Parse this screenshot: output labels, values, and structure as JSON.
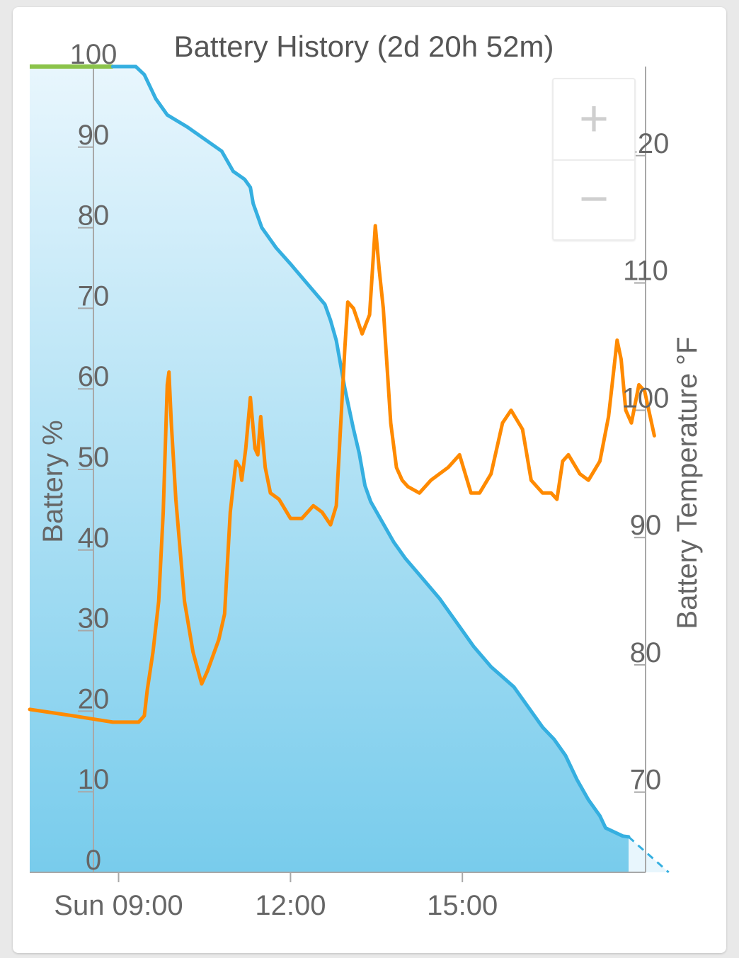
{
  "chart_data": {
    "type": "line",
    "title": "Battery History (2d 20h 52m)",
    "ylabel_left": "Battery %",
    "ylabel_right": "Battery Temperature °F",
    "x_unit": "hours (clock time)",
    "x_ticks": [
      {
        "value": 9,
        "label": "Sun 09:00"
      },
      {
        "value": 12,
        "label": "12:00"
      },
      {
        "value": 15,
        "label": "15:00"
      }
    ],
    "xlim": [
      7.45,
      17.9
    ],
    "y_left": {
      "ticks": [
        0,
        10,
        20,
        30,
        40,
        50,
        60,
        70,
        80,
        90,
        100
      ],
      "lim": [
        0,
        100
      ]
    },
    "y_right": {
      "ticks": [
        70,
        80,
        90,
        100,
        110,
        120
      ],
      "lim": [
        63.7,
        127
      ]
    },
    "grid": false,
    "series": [
      {
        "name": "Battery %",
        "axis": "left",
        "color": "#35afe0",
        "fill": true,
        "points": [
          [
            7.45,
            100
          ],
          [
            8.9,
            100
          ],
          [
            9.3,
            100
          ],
          [
            9.45,
            99
          ],
          [
            9.65,
            96
          ],
          [
            9.85,
            94
          ],
          [
            10.2,
            92.5
          ],
          [
            10.8,
            89.5
          ],
          [
            11.0,
            87
          ],
          [
            11.2,
            86
          ],
          [
            11.3,
            85
          ],
          [
            11.35,
            83
          ],
          [
            11.5,
            80
          ],
          [
            11.75,
            77.5
          ],
          [
            12.0,
            75.5
          ],
          [
            12.3,
            73
          ],
          [
            12.6,
            70.5
          ],
          [
            12.7,
            68.5
          ],
          [
            12.8,
            66
          ],
          [
            12.95,
            60
          ],
          [
            13.1,
            55
          ],
          [
            13.2,
            52
          ],
          [
            13.3,
            48
          ],
          [
            13.4,
            46
          ],
          [
            13.6,
            43.5
          ],
          [
            13.8,
            41
          ],
          [
            14.0,
            39
          ],
          [
            14.3,
            36.5
          ],
          [
            14.6,
            34
          ],
          [
            14.9,
            31
          ],
          [
            15.2,
            28
          ],
          [
            15.5,
            25.5
          ],
          [
            15.9,
            23
          ],
          [
            16.2,
            20
          ],
          [
            16.4,
            18
          ],
          [
            16.6,
            16.5
          ],
          [
            16.8,
            14.5
          ],
          [
            17.0,
            11.5
          ],
          [
            17.2,
            9
          ],
          [
            17.4,
            7
          ],
          [
            17.5,
            5.5
          ],
          [
            17.8,
            4.5
          ],
          [
            17.9,
            4.4
          ]
        ],
        "projection": [
          [
            17.9,
            4.4
          ],
          [
            18.6,
            0
          ]
        ]
      },
      {
        "name": "Battery Temperature °F",
        "axis": "right",
        "color": "#ff8a00",
        "fill": false,
        "points": [
          [
            7.45,
            76.5
          ],
          [
            8.2,
            76
          ],
          [
            8.9,
            75.5
          ],
          [
            9.35,
            75.5
          ],
          [
            9.45,
            76
          ],
          [
            9.5,
            78
          ],
          [
            9.6,
            81
          ],
          [
            9.7,
            85
          ],
          [
            9.78,
            92
          ],
          [
            9.85,
            102
          ],
          [
            9.88,
            103
          ],
          [
            9.92,
            99
          ],
          [
            10.0,
            93
          ],
          [
            10.15,
            85
          ],
          [
            10.3,
            81
          ],
          [
            10.45,
            78.5
          ],
          [
            10.55,
            79.5
          ],
          [
            10.75,
            82
          ],
          [
            10.85,
            84
          ],
          [
            10.95,
            92
          ],
          [
            11.05,
            96
          ],
          [
            11.12,
            95.5
          ],
          [
            11.15,
            94.5
          ],
          [
            11.22,
            97
          ],
          [
            11.3,
            101
          ],
          [
            11.38,
            97
          ],
          [
            11.43,
            96.5
          ],
          [
            11.48,
            99.5
          ],
          [
            11.56,
            95.5
          ],
          [
            11.65,
            93.5
          ],
          [
            11.8,
            93
          ],
          [
            12.0,
            91.5
          ],
          [
            12.2,
            91.5
          ],
          [
            12.4,
            92.5
          ],
          [
            12.55,
            92
          ],
          [
            12.7,
            91
          ],
          [
            12.8,
            92.5
          ],
          [
            12.95,
            105
          ],
          [
            13.0,
            108.5
          ],
          [
            13.1,
            108
          ],
          [
            13.25,
            106
          ],
          [
            13.38,
            107.5
          ],
          [
            13.48,
            114.5
          ],
          [
            13.55,
            111
          ],
          [
            13.62,
            108
          ],
          [
            13.75,
            99
          ],
          [
            13.85,
            95.5
          ],
          [
            13.95,
            94.5
          ],
          [
            14.05,
            94
          ],
          [
            14.25,
            93.5
          ],
          [
            14.45,
            94.5
          ],
          [
            14.75,
            95.5
          ],
          [
            14.95,
            96.5
          ],
          [
            15.05,
            95
          ],
          [
            15.15,
            93.5
          ],
          [
            15.3,
            93.5
          ],
          [
            15.5,
            95
          ],
          [
            15.7,
            99
          ],
          [
            15.85,
            100
          ],
          [
            16.05,
            98.5
          ],
          [
            16.2,
            94.5
          ],
          [
            16.4,
            93.5
          ],
          [
            16.55,
            93.5
          ],
          [
            16.65,
            93
          ],
          [
            16.75,
            96
          ],
          [
            16.85,
            96.5
          ],
          [
            17.05,
            95
          ],
          [
            17.2,
            94.5
          ],
          [
            17.4,
            96
          ],
          [
            17.55,
            99.5
          ],
          [
            17.7,
            105.5
          ],
          [
            17.77,
            104
          ],
          [
            17.85,
            100
          ],
          [
            17.95,
            99
          ],
          [
            18.08,
            102
          ],
          [
            18.18,
            101.5
          ],
          [
            18.35,
            98
          ]
        ]
      }
    ],
    "full_charge_color": "#8bc34a",
    "fill_top_color": "#e8f6fd",
    "fill_bottom_color": "#78ccec"
  },
  "zoom": {
    "in_label": "+",
    "out_label": "−"
  }
}
